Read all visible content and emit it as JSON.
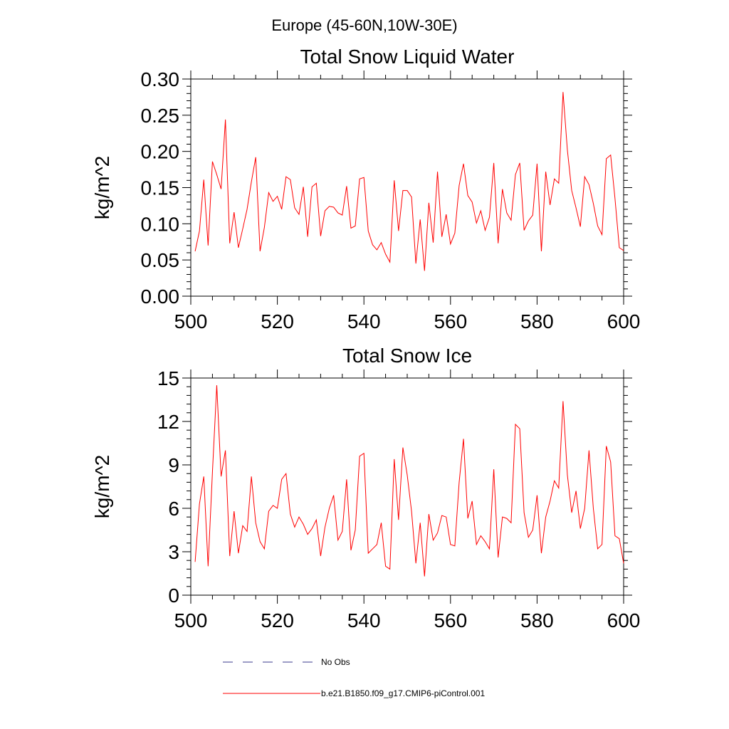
{
  "figure": {
    "suptitle": "Europe (45-60N,10W-30E)",
    "line_color": "#ff0000",
    "obs_color": "#3a3a8c"
  },
  "legend": {
    "entries": [
      {
        "label": "No Obs",
        "style": "dashed",
        "color": "#3a3a8c"
      },
      {
        "label": "b.e21.B1850.f09_g17.CMIP6-piControl.001",
        "style": "solid",
        "color": "#ff0000"
      }
    ]
  },
  "chart_data": [
    {
      "type": "line",
      "title": "Total Snow Liquid Water",
      "xlabel": "",
      "ylabel": "kg/m^2",
      "xlim": [
        500,
        600
      ],
      "ylim": [
        0,
        0.3
      ],
      "xticks": [
        500,
        520,
        540,
        560,
        580,
        600
      ],
      "xtick_labels": [
        "500",
        "520",
        "540",
        "560",
        "580",
        "600"
      ],
      "yticks": [
        0,
        0.05,
        0.1,
        0.15,
        0.2,
        0.25,
        0.3
      ],
      "ytick_labels": [
        "0.00",
        "0.05",
        "0.10",
        "0.15",
        "0.20",
        "0.25",
        "0.30"
      ],
      "series": [
        {
          "name": "b.e21.B1850.f09_g17.CMIP6-piControl.001",
          "x_start": 501,
          "values": [
            0.062,
            0.09,
            0.161,
            0.07,
            0.186,
            0.168,
            0.148,
            0.244,
            0.073,
            0.116,
            0.067,
            0.093,
            0.12,
            0.158,
            0.192,
            0.062,
            0.095,
            0.143,
            0.131,
            0.138,
            0.12,
            0.165,
            0.161,
            0.122,
            0.113,
            0.151,
            0.082,
            0.151,
            0.156,
            0.083,
            0.118,
            0.124,
            0.123,
            0.115,
            0.112,
            0.152,
            0.094,
            0.097,
            0.162,
            0.164,
            0.09,
            0.071,
            0.064,
            0.074,
            0.058,
            0.047,
            0.16,
            0.09,
            0.146,
            0.146,
            0.137,
            0.045,
            0.106,
            0.035,
            0.129,
            0.074,
            0.172,
            0.082,
            0.113,
            0.072,
            0.087,
            0.153,
            0.183,
            0.139,
            0.13,
            0.101,
            0.118,
            0.091,
            0.109,
            0.184,
            0.073,
            0.148,
            0.115,
            0.105,
            0.168,
            0.184,
            0.091,
            0.104,
            0.112,
            0.183,
            0.062,
            0.172,
            0.126,
            0.162,
            0.156,
            0.282,
            0.202,
            0.146,
            0.122,
            0.096,
            0.165,
            0.154,
            0.128,
            0.097,
            0.085,
            0.19,
            0.195,
            0.135,
            0.067,
            0.063
          ]
        }
      ]
    },
    {
      "type": "line",
      "title": "Total Snow Ice",
      "xlabel": "",
      "ylabel": "kg/m^2",
      "xlim": [
        500,
        600
      ],
      "ylim": [
        0,
        15
      ],
      "xticks": [
        500,
        520,
        540,
        560,
        580,
        600
      ],
      "xtick_labels": [
        "500",
        "520",
        "540",
        "560",
        "580",
        "600"
      ],
      "yticks": [
        0,
        3,
        6,
        9,
        12,
        15
      ],
      "ytick_labels": [
        "0",
        "3",
        "6",
        "9",
        "12",
        "15"
      ],
      "series": [
        {
          "name": "b.e21.B1850.f09_g17.CMIP6-piControl.001",
          "x_start": 501,
          "values": [
            2.3,
            6.3,
            8.2,
            2.0,
            8.5,
            14.5,
            8.2,
            10.0,
            2.7,
            5.8,
            2.9,
            4.8,
            4.4,
            8.2,
            5.0,
            3.7,
            3.2,
            5.8,
            6.2,
            6.0,
            8.0,
            8.4,
            5.6,
            4.7,
            5.4,
            4.9,
            4.2,
            4.6,
            5.2,
            2.7,
            4.7,
            6.0,
            6.9,
            3.8,
            4.4,
            8.0,
            3.1,
            4.5,
            9.6,
            9.8,
            2.9,
            3.2,
            3.5,
            5.0,
            2.0,
            1.8,
            9.4,
            5.2,
            10.2,
            8.3,
            5.8,
            2.2,
            5.0,
            1.3,
            5.6,
            3.8,
            4.3,
            5.5,
            5.4,
            3.5,
            3.4,
            7.8,
            10.8,
            5.3,
            6.5,
            3.5,
            4.1,
            3.7,
            3.2,
            8.7,
            2.6,
            5.4,
            5.3,
            5.0,
            11.8,
            11.5,
            5.7,
            4.0,
            4.5,
            6.9,
            2.9,
            5.4,
            6.5,
            7.9,
            7.4,
            13.4,
            8.3,
            5.7,
            7.2,
            4.6,
            6.0,
            10.0,
            6.0,
            3.2,
            3.5,
            10.3,
            9.2,
            4.1,
            3.9,
            2.2
          ]
        }
      ]
    }
  ]
}
